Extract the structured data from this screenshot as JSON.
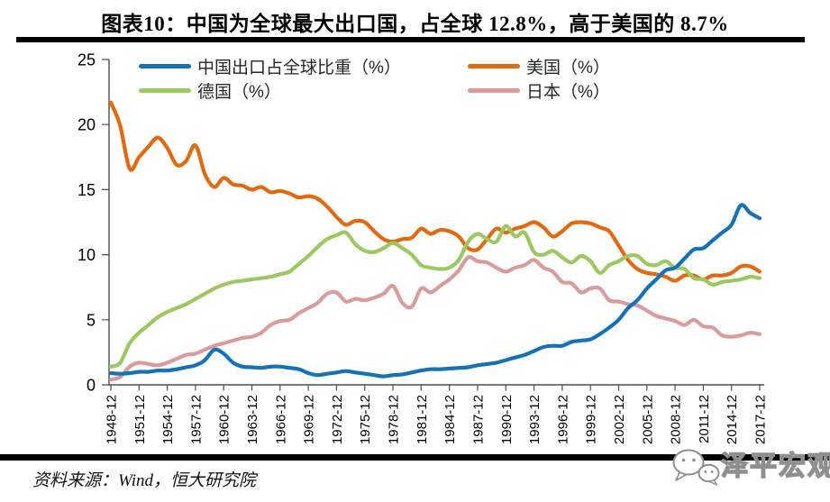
{
  "title": "图表10：中国为全球最大出口国，占全球 12.8%，高于美国的 8.7%",
  "source_note": "资料来源：Wind，恒大研究院",
  "watermark_text": "泽平宏观",
  "chart_data": {
    "type": "line",
    "x_start": 1948,
    "x_end": 2017,
    "x_tick_labels": [
      "1948-12",
      "1951-12",
      "1954-12",
      "1957-12",
      "1960-12",
      "1963-12",
      "1966-12",
      "1969-12",
      "1972-12",
      "1975-12",
      "1978-12",
      "1981-12",
      "1984-12",
      "1987-12",
      "1990-12",
      "1993-12",
      "1996-12",
      "1999-12",
      "2002-12",
      "2005-12",
      "2008-12",
      "2011-12",
      "2014-12",
      "2017-12"
    ],
    "ylim": [
      0,
      25
    ],
    "y_ticks": [
      0,
      5,
      10,
      15,
      20,
      25
    ],
    "grid": false,
    "legend_position": "top",
    "axis_color": "#4d4d4d",
    "series": [
      {
        "name": "中国出口占全球比重（%）",
        "color": "#1572B5",
        "values": [
          0.9,
          0.85,
          0.9,
          1.0,
          1.0,
          1.1,
          1.1,
          1.2,
          1.35,
          1.5,
          1.9,
          2.7,
          2.4,
          1.7,
          1.4,
          1.35,
          1.3,
          1.4,
          1.4,
          1.3,
          1.2,
          0.9,
          0.75,
          0.85,
          0.95,
          1.05,
          0.95,
          0.85,
          0.75,
          0.65,
          0.75,
          0.8,
          0.95,
          1.1,
          1.2,
          1.2,
          1.25,
          1.3,
          1.35,
          1.5,
          1.6,
          1.7,
          1.9,
          2.1,
          2.3,
          2.6,
          2.9,
          3.0,
          3.0,
          3.3,
          3.4,
          3.5,
          3.9,
          4.4,
          5.0,
          5.9,
          6.5,
          7.4,
          8.1,
          8.8,
          9.0,
          9.7,
          10.4,
          10.5,
          11.1,
          11.7,
          12.3,
          13.8,
          13.2,
          12.8
        ]
      },
      {
        "name": "美国（%）",
        "color": "#E2690F",
        "values": [
          21.7,
          19.9,
          16.6,
          17.5,
          18.3,
          19.0,
          18.2,
          16.9,
          17.2,
          18.4,
          16.2,
          15.2,
          15.9,
          15.4,
          15.3,
          15.0,
          15.2,
          14.8,
          14.9,
          14.7,
          14.4,
          14.5,
          14.3,
          13.7,
          12.9,
          12.3,
          12.6,
          12.5,
          11.8,
          11.2,
          11.0,
          11.2,
          11.3,
          12.0,
          11.6,
          11.9,
          11.8,
          11.4,
          10.5,
          10.4,
          11.2,
          12.0,
          11.7,
          12.0,
          12.2,
          12.5,
          12.1,
          11.4,
          11.8,
          12.4,
          12.5,
          12.4,
          12.1,
          11.8,
          10.7,
          9.6,
          8.9,
          8.6,
          8.5,
          8.3,
          8.0,
          8.4,
          8.4,
          8.1,
          8.4,
          8.4,
          8.6,
          9.1,
          9.1,
          8.7
        ]
      },
      {
        "name": "德国（%）",
        "color": "#9CC860",
        "values": [
          1.4,
          1.7,
          3.2,
          4.0,
          4.6,
          5.2,
          5.6,
          5.9,
          6.2,
          6.6,
          7.0,
          7.4,
          7.7,
          7.9,
          8.0,
          8.1,
          8.2,
          8.3,
          8.5,
          8.7,
          9.3,
          9.9,
          10.6,
          11.2,
          11.5,
          11.7,
          10.8,
          10.3,
          10.2,
          10.5,
          10.9,
          10.5,
          10.0,
          9.2,
          9.0,
          8.9,
          9.0,
          9.6,
          11.0,
          11.6,
          11.2,
          11.0,
          12.2,
          11.4,
          11.7,
          10.2,
          10.0,
          10.3,
          9.8,
          9.4,
          9.9,
          9.5,
          8.6,
          9.2,
          9.5,
          9.9,
          9.9,
          9.3,
          9.2,
          9.5,
          9.0,
          8.9,
          8.2,
          8.1,
          7.7,
          7.9,
          8.0,
          8.1,
          8.3,
          8.2
        ]
      },
      {
        "name": "日本（%）",
        "color": "#D99B9B",
        "values": [
          0.4,
          0.6,
          1.4,
          1.7,
          1.6,
          1.5,
          1.7,
          2.0,
          2.3,
          2.4,
          2.7,
          3.0,
          3.2,
          3.4,
          3.6,
          3.7,
          4.0,
          4.6,
          4.9,
          5.0,
          5.5,
          5.9,
          6.3,
          7.0,
          7.1,
          6.4,
          6.6,
          6.5,
          6.7,
          7.0,
          7.6,
          6.3,
          6.0,
          7.4,
          7.1,
          7.6,
          8.1,
          8.8,
          9.8,
          9.5,
          9.4,
          9.0,
          8.7,
          9.0,
          9.2,
          9.6,
          9.0,
          8.7,
          7.9,
          7.8,
          7.1,
          7.4,
          7.4,
          6.5,
          6.4,
          6.2,
          6.1,
          5.7,
          5.3,
          5.1,
          4.9,
          4.6,
          5.0,
          4.5,
          4.4,
          3.8,
          3.7,
          3.8,
          4.0,
          3.9
        ]
      }
    ]
  }
}
